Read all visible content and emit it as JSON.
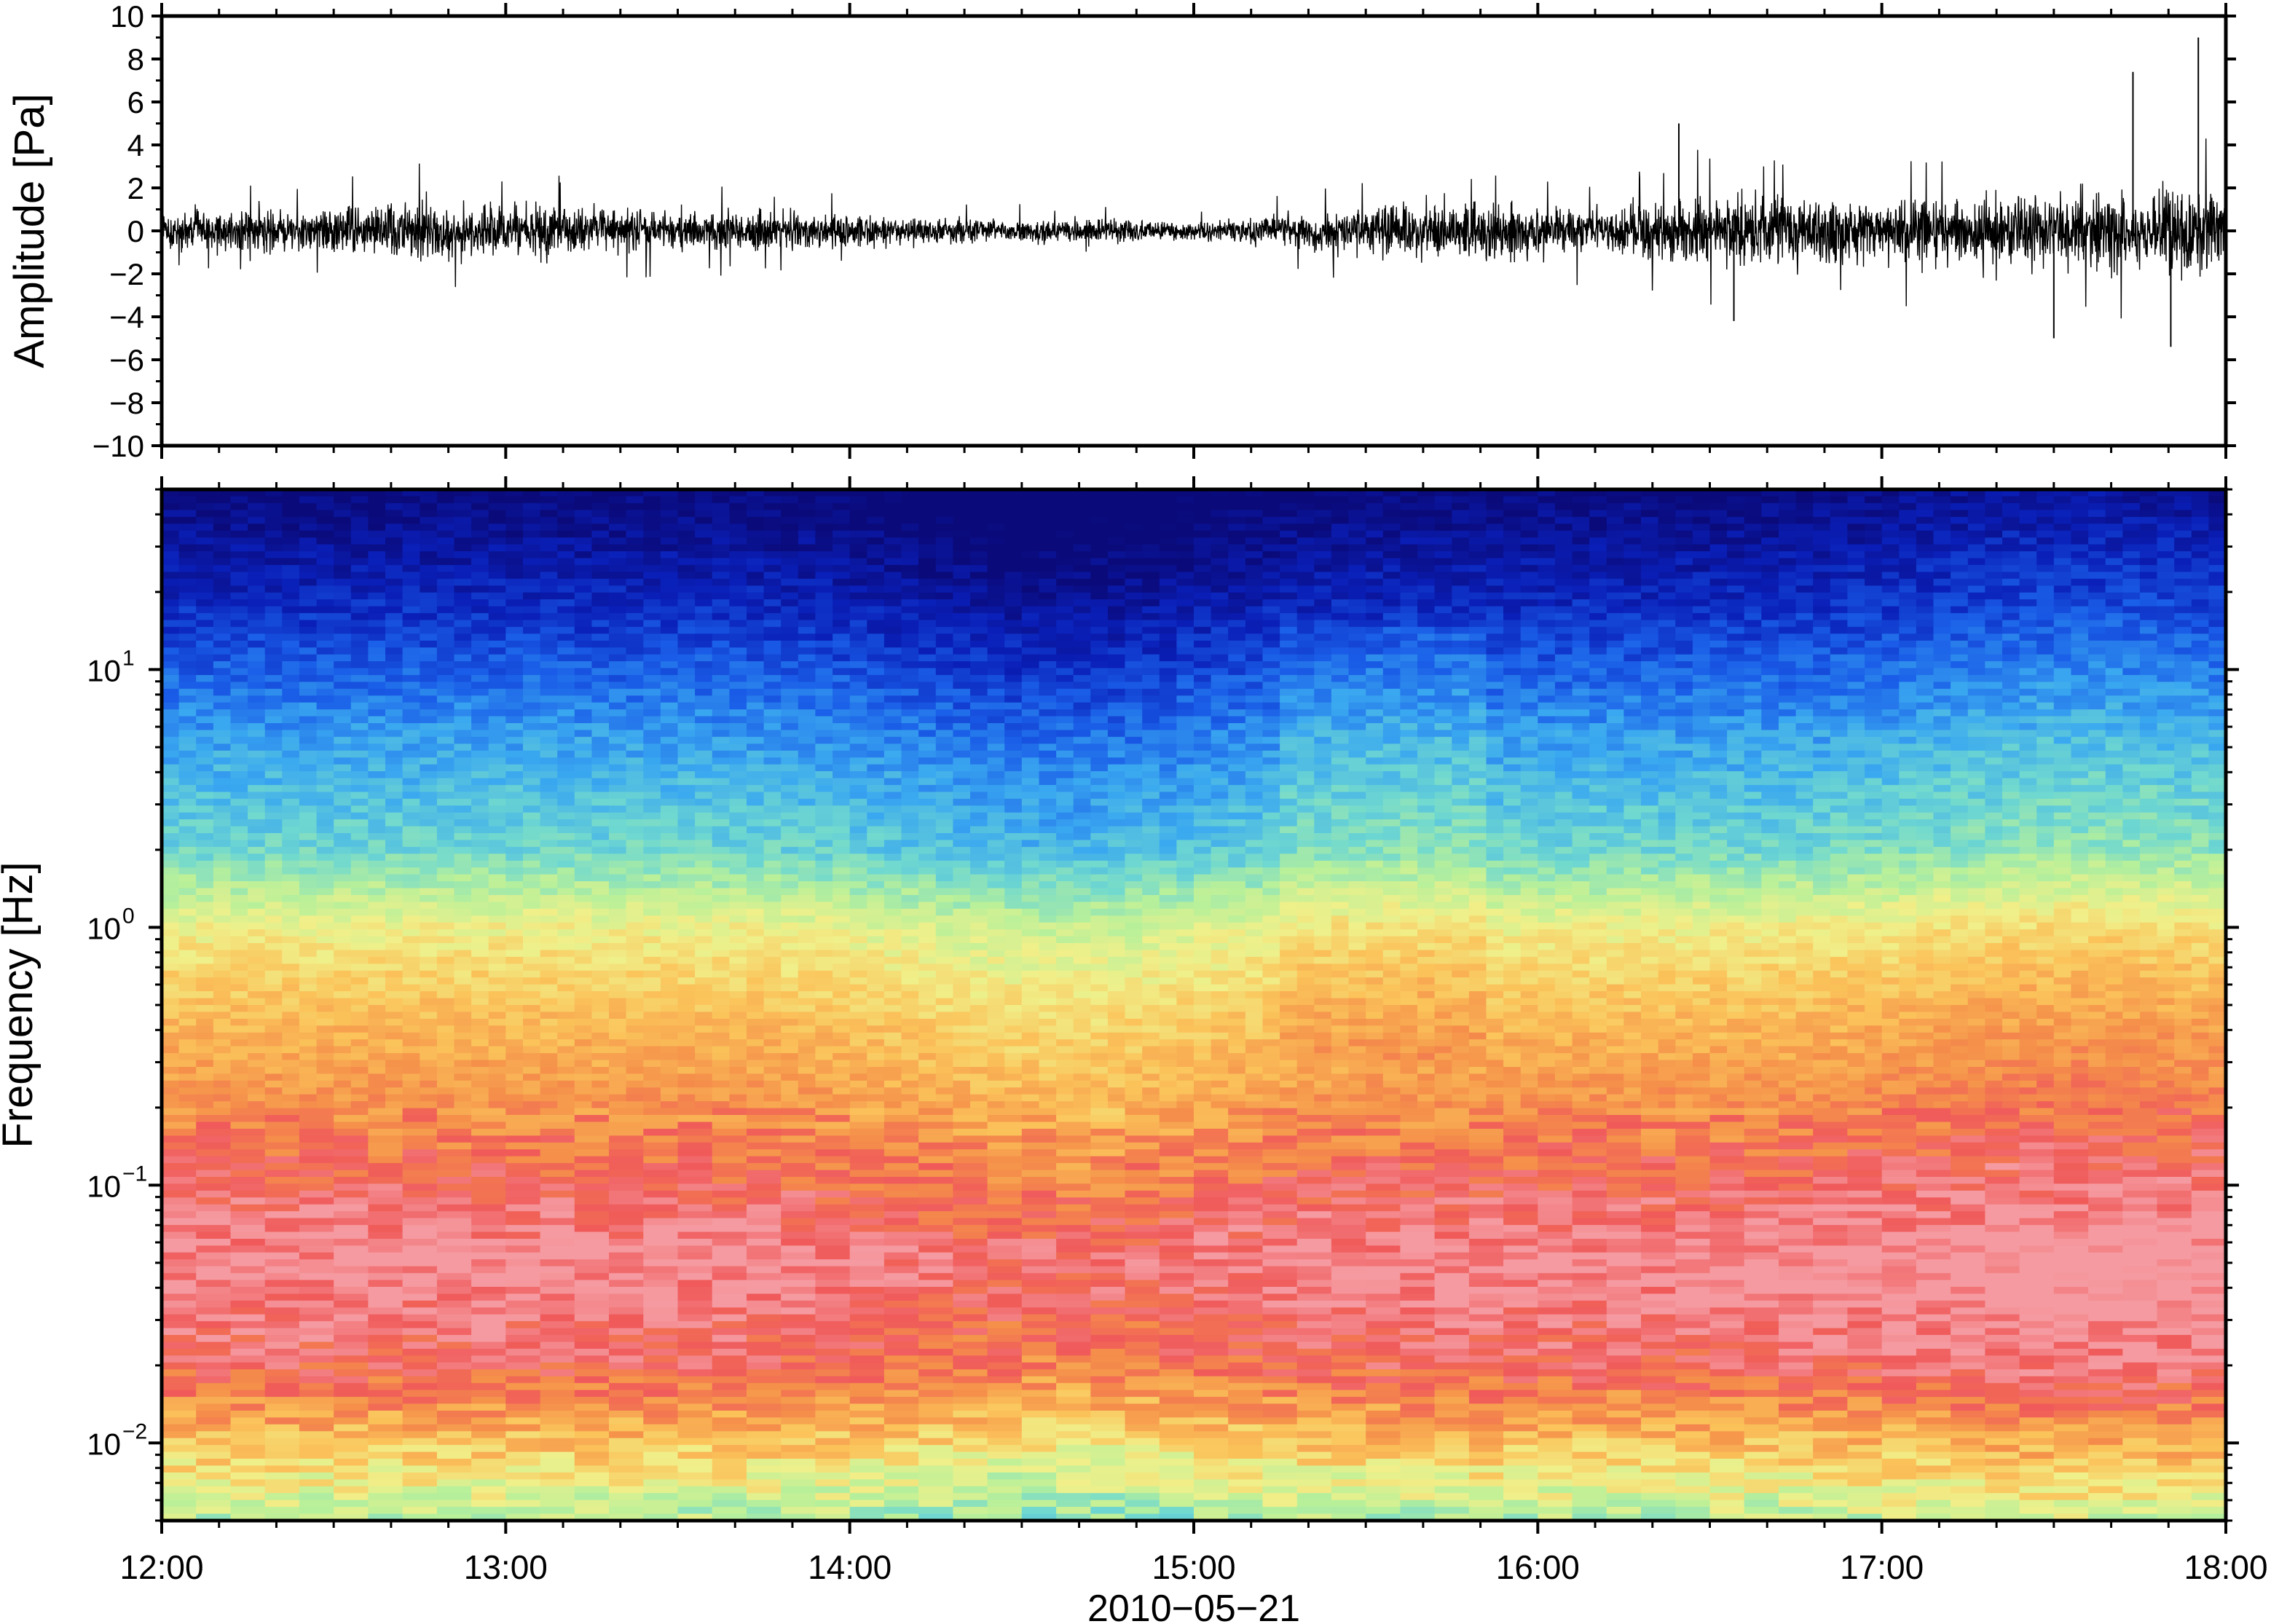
{
  "chart_data": [
    {
      "type": "line",
      "ylabel": "Amplitude [Pa]",
      "ylim": [
        -10,
        10
      ],
      "y_ticks": [
        "10",
        "8",
        "6",
        "4",
        "2",
        "0",
        "−2",
        "−4",
        "−6",
        "−8",
        "−10"
      ],
      "y_tick_values": [
        10,
        8,
        6,
        4,
        2,
        0,
        -2,
        -4,
        -6,
        -8,
        -10
      ],
      "xlim_hours": [
        12,
        18
      ],
      "series": [
        {
          "values_envelope_note": "",
          "hour": [
            12.0,
            12.5,
            12.75,
            13.0,
            13.25,
            13.5,
            14.0,
            14.5,
            15.0,
            15.25,
            15.5,
            15.75,
            16.0,
            16.25,
            16.5,
            16.75,
            17.0,
            17.25,
            17.5,
            17.75,
            18.0
          ],
          "upper": [
            1.8,
            2.6,
            3.2,
            2.6,
            2.4,
            2.0,
            1.6,
            1.2,
            1.0,
            1.6,
            2.4,
            3.0,
            2.6,
            2.4,
            3.6,
            3.8,
            3.4,
            3.6,
            3.8,
            4.2,
            4.6
          ],
          "lower": [
            -1.8,
            -2.4,
            -2.8,
            -2.8,
            -2.6,
            -2.0,
            -1.6,
            -1.2,
            -1.0,
            -1.6,
            -2.4,
            -3.0,
            -2.6,
            -2.6,
            -3.2,
            -3.4,
            -3.2,
            -3.4,
            -3.6,
            -4.0,
            -4.4
          ]
        }
      ],
      "spikes": [
        {
          "hour": 17.73,
          "value": 7.4
        },
        {
          "hour": 17.92,
          "value": 9.0
        },
        {
          "hour": 17.84,
          "value": -5.4
        },
        {
          "hour": 17.5,
          "value": -5.0
        },
        {
          "hour": 16.41,
          "value": 5.0
        },
        {
          "hour": 16.57,
          "value": -4.2
        }
      ],
      "color": "#000000"
    },
    {
      "type": "heatmap",
      "ylabel": "Frequency [Hz]",
      "xlabel": "2010−05−21",
      "y_scale": "log",
      "ylim": [
        0.005,
        50
      ],
      "y_ticks": [
        {
          "value": 10,
          "base": "10",
          "exp": "1"
        },
        {
          "value": 1,
          "base": "10",
          "exp": "0"
        },
        {
          "value": 0.1,
          "base": "10",
          "exp": "−1"
        },
        {
          "value": 0.01,
          "base": "10",
          "exp": "−2"
        }
      ],
      "x_ticks": [
        {
          "hour": 12,
          "label": "12:00"
        },
        {
          "hour": 13,
          "label": "13:00"
        },
        {
          "hour": 14,
          "label": "14:00"
        },
        {
          "hour": 15,
          "label": "15:00"
        },
        {
          "hour": 16,
          "label": "16:00"
        },
        {
          "hour": 17,
          "label": "17:00"
        },
        {
          "hour": 18,
          "label": "18:00"
        }
      ],
      "xlim_hours": [
        12,
        18
      ],
      "colormap": [
        "#0a0a7a",
        "#0a1fb8",
        "#1a5ee8",
        "#3aa8f0",
        "#6fd8d0",
        "#b8f09a",
        "#f0f08a",
        "#fbc35a",
        "#f5904a",
        "#f05a5a",
        "#f59aa0"
      ],
      "spectral_profile": {
        "freq_hz": [
          50,
          20,
          10,
          5,
          2,
          1,
          0.5,
          0.2,
          0.1,
          0.05,
          0.02,
          0.01,
          0.005
        ],
        "level_index": [
          0,
          1,
          2,
          3,
          4,
          6,
          7,
          8,
          9,
          10,
          9,
          7,
          5
        ]
      }
    }
  ]
}
